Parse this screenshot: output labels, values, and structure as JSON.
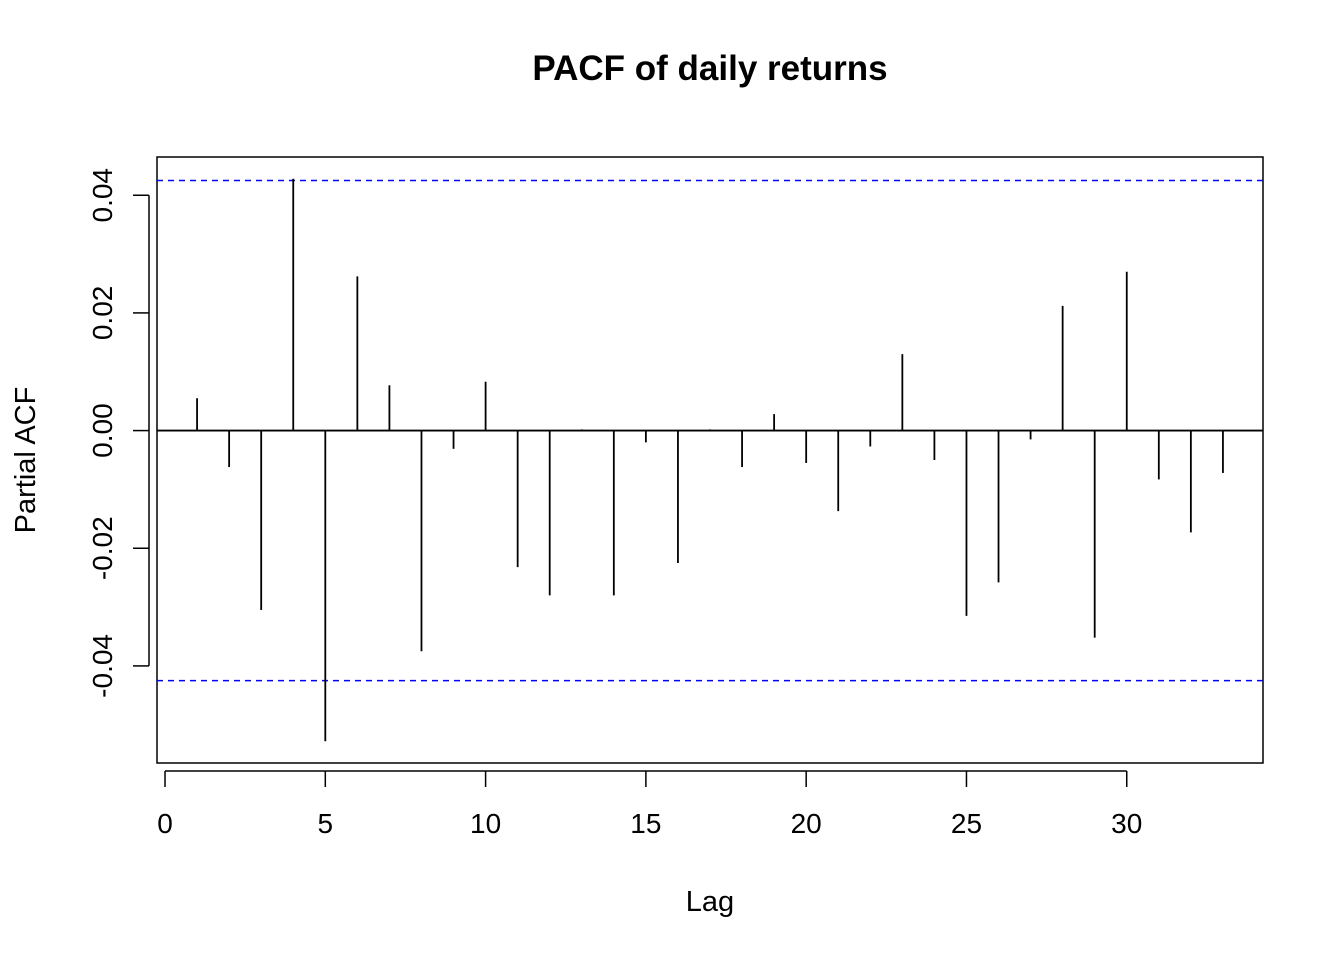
{
  "chart_data": {
    "type": "bar",
    "title": "PACF of daily returns",
    "xlabel": "Lag",
    "ylabel": "Partial ACF",
    "xlim": [
      -0.25,
      34.25
    ],
    "ylim": [
      -0.0565,
      0.0465
    ],
    "x_ticks": [
      0,
      5,
      10,
      15,
      20,
      25,
      30
    ],
    "x_tick_labels": [
      "0",
      "5",
      "10",
      "15",
      "20",
      "25",
      "30"
    ],
    "y_ticks": [
      -0.04,
      -0.02,
      0.0,
      0.02,
      0.04
    ],
    "y_tick_labels": [
      "-0.04",
      "-0.02",
      "0.00",
      "0.02",
      "0.04"
    ],
    "confidence_bound": 0.0425,
    "confidence_color": "#0000ff",
    "bar_color": "#000000",
    "lags": [
      1,
      2,
      3,
      4,
      5,
      6,
      7,
      8,
      9,
      10,
      11,
      12,
      13,
      14,
      15,
      16,
      17,
      18,
      19,
      20,
      21,
      22,
      23,
      24,
      25,
      26,
      27,
      28,
      29,
      30,
      31,
      32,
      33
    ],
    "values": [
      0.0055,
      -0.0062,
      -0.0305,
      0.0428,
      -0.0528,
      0.0262,
      0.0077,
      -0.0375,
      -0.0031,
      0.0083,
      -0.0232,
      -0.028,
      0.0002,
      -0.028,
      -0.002,
      -0.0225,
      0.0002,
      -0.0062,
      0.0028,
      -0.0055,
      -0.0137,
      -0.0027,
      0.013,
      -0.005,
      -0.0315,
      -0.0258,
      -0.0015,
      0.0212,
      -0.0352,
      0.027,
      -0.0083,
      -0.0173,
      -0.0072
    ]
  }
}
